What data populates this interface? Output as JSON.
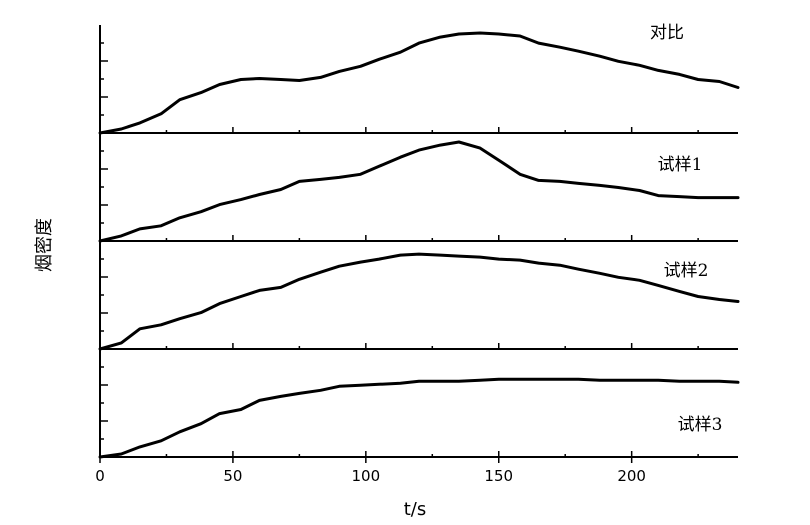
{
  "chart_data": {
    "type": "line",
    "xlabel": "t/s",
    "ylabel": "烟密度",
    "xlim": [
      0,
      240
    ],
    "x_ticks": [
      0,
      50,
      100,
      150,
      200
    ],
    "y_ticks_labeled": false,
    "grid": false,
    "layout": "stacked-panels",
    "series": [
      {
        "name": "对比",
        "ylim": [
          0,
          1
        ],
        "x": [
          0,
          8,
          15,
          23,
          30,
          38,
          45,
          53,
          60,
          68,
          75,
          83,
          90,
          98,
          105,
          113,
          120,
          128,
          135,
          143,
          150,
          158,
          165,
          173,
          180,
          188,
          195,
          203,
          210,
          218,
          225,
          233,
          240
        ],
        "y": [
          0.0,
          0.04,
          0.1,
          0.19,
          0.33,
          0.4,
          0.48,
          0.53,
          0.54,
          0.53,
          0.52,
          0.55,
          0.61,
          0.66,
          0.73,
          0.8,
          0.89,
          0.95,
          0.98,
          0.99,
          0.98,
          0.96,
          0.89,
          0.85,
          0.81,
          0.76,
          0.71,
          0.67,
          0.62,
          0.58,
          0.53,
          0.51,
          0.45
        ]
      },
      {
        "name": "试样1",
        "ylim": [
          0,
          1
        ],
        "x": [
          0,
          8,
          15,
          23,
          30,
          38,
          45,
          53,
          60,
          68,
          75,
          83,
          90,
          98,
          105,
          113,
          120,
          128,
          135,
          143,
          150,
          158,
          165,
          173,
          180,
          188,
          195,
          203,
          210,
          218,
          225,
          233,
          240
        ],
        "y": [
          0.0,
          0.05,
          0.12,
          0.15,
          0.23,
          0.29,
          0.36,
          0.41,
          0.46,
          0.51,
          0.59,
          0.61,
          0.63,
          0.66,
          0.74,
          0.83,
          0.9,
          0.95,
          0.98,
          0.92,
          0.8,
          0.66,
          0.6,
          0.59,
          0.57,
          0.55,
          0.53,
          0.5,
          0.45,
          0.44,
          0.43,
          0.43,
          0.43
        ]
      },
      {
        "name": "试样2",
        "ylim": [
          0,
          1
        ],
        "x": [
          0,
          8,
          15,
          23,
          30,
          38,
          45,
          53,
          60,
          68,
          75,
          83,
          90,
          98,
          105,
          113,
          120,
          128,
          135,
          143,
          150,
          158,
          165,
          173,
          180,
          188,
          195,
          203,
          210,
          218,
          225,
          233,
          240
        ],
        "y": [
          0.0,
          0.06,
          0.2,
          0.24,
          0.3,
          0.36,
          0.45,
          0.52,
          0.58,
          0.61,
          0.69,
          0.76,
          0.82,
          0.86,
          0.89,
          0.93,
          0.94,
          0.93,
          0.92,
          0.91,
          0.89,
          0.88,
          0.85,
          0.83,
          0.79,
          0.75,
          0.71,
          0.68,
          0.63,
          0.57,
          0.52,
          0.49,
          0.47
        ]
      },
      {
        "name": "试样3",
        "ylim": [
          0,
          1
        ],
        "x": [
          0,
          8,
          15,
          23,
          30,
          38,
          45,
          53,
          60,
          68,
          75,
          83,
          90,
          98,
          105,
          113,
          120,
          128,
          135,
          143,
          150,
          158,
          165,
          173,
          180,
          188,
          195,
          203,
          210,
          218,
          225,
          233,
          240
        ],
        "y": [
          0.0,
          0.03,
          0.1,
          0.16,
          0.25,
          0.33,
          0.43,
          0.47,
          0.56,
          0.6,
          0.63,
          0.66,
          0.7,
          0.71,
          0.72,
          0.73,
          0.75,
          0.75,
          0.75,
          0.76,
          0.77,
          0.77,
          0.77,
          0.77,
          0.77,
          0.76,
          0.76,
          0.76,
          0.76,
          0.75,
          0.75,
          0.75,
          0.74
        ]
      }
    ]
  }
}
